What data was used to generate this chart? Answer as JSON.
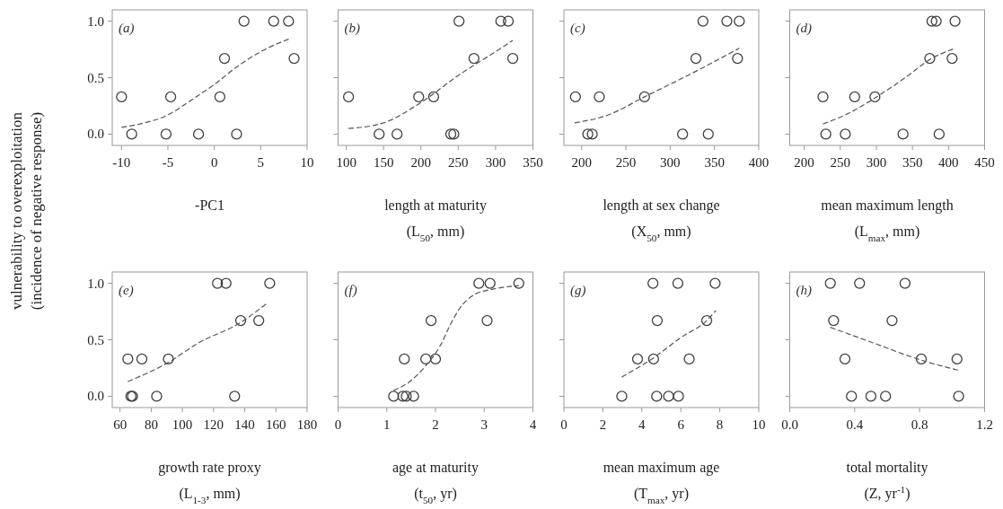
{
  "chart_data": [
    {
      "type": "scatter",
      "title": "(a)",
      "xlabel": "-PC1",
      "ylabel": "vulnerability to overexploitation\n(incidence of negative response)",
      "xlim": [
        -11,
        10
      ],
      "xticks": [
        -10,
        -5,
        0,
        5,
        10
      ],
      "ylim": [
        -0.1,
        1.1
      ],
      "yticks": [
        {
          "value": 0,
          "label": "0.0"
        },
        {
          "value": 0.5,
          "label": "0.5"
        },
        {
          "value": 1,
          "label": "1.0"
        }
      ],
      "series": [
        {
          "type": "scatter",
          "marker": "circle",
          "color": "#404040",
          "x": [
            -10,
            -8.9,
            -5.2,
            -4.7,
            -1.7,
            0.6,
            1.1,
            2.4,
            3.2,
            6.4,
            8.0,
            8.6
          ],
          "values": [
            0.33,
            0,
            0,
            0.33,
            0,
            0.33,
            0.67,
            0,
            1,
            1,
            1,
            0.67
          ]
        },
        {
          "type": "line",
          "line_style": "dashed",
          "color": "#555555",
          "x": [
            -10,
            -7.5,
            -5,
            -2.5,
            0,
            2.5,
            5,
            8.3
          ],
          "values": [
            0.06,
            0.1,
            0.17,
            0.3,
            0.44,
            0.6,
            0.73,
            0.85
          ]
        }
      ]
    },
    {
      "type": "scatter",
      "title": "(b)",
      "xlabel": "length at maturity\n(L$_{50}$, mm)",
      "xlim": [
        89,
        350
      ],
      "xticks": [
        100,
        150,
        200,
        250,
        300,
        350
      ],
      "ylim": [
        -0.1,
        1.1
      ],
      "yticks": [
        0,
        0.5,
        1
      ],
      "tick_labels": "x",
      "series": [
        {
          "type": "scatter",
          "marker": "circle",
          "color": "#404040",
          "x": [
            103,
            144,
            168,
            197,
            217,
            240,
            244,
            251,
            271,
            307,
            317,
            323
          ],
          "values": [
            0.33,
            0,
            0,
            0.33,
            0.33,
            0,
            0,
            1,
            0.67,
            1,
            1,
            0.67
          ]
        },
        {
          "type": "line",
          "line_style": "dashed",
          "color": "#555555",
          "x": [
            103,
            150,
            200,
            250,
            300,
            323
          ],
          "values": [
            0.05,
            0.1,
            0.28,
            0.52,
            0.73,
            0.83
          ]
        }
      ]
    },
    {
      "type": "scatter",
      "title": "(c)",
      "xlabel": "length at sex change\n(X$_{50}$, mm)",
      "xlim": [
        180,
        400
      ],
      "xticks": [
        200,
        250,
        300,
        350,
        400
      ],
      "ylim": [
        -0.1,
        1.1
      ],
      "yticks": [
        0,
        0.5,
        1
      ],
      "tick_labels": "x",
      "series": [
        {
          "type": "scatter",
          "marker": "circle",
          "color": "#404040",
          "x": [
            193,
            207,
            212,
            220,
            271,
            314,
            329,
            337,
            343,
            364,
            376,
            378
          ],
          "values": [
            0.33,
            0,
            0,
            0.33,
            0.33,
            0,
            0.67,
            1,
            0,
            1,
            0.67,
            1
          ]
        },
        {
          "type": "line",
          "line_style": "dashed",
          "color": "#555555",
          "x": [
            192,
            230,
            271,
            320,
            378
          ],
          "values": [
            0.1,
            0.17,
            0.33,
            0.52,
            0.76
          ]
        }
      ]
    },
    {
      "type": "scatter",
      "title": "(d)",
      "xlabel": "mean maximum length\n(L$_{max}$, mm)",
      "xlim": [
        180,
        450
      ],
      "xticks": [
        200,
        250,
        300,
        350,
        400,
        450
      ],
      "ylim": [
        -0.1,
        1.1
      ],
      "yticks": [
        0,
        0.5,
        1
      ],
      "tick_labels": "x",
      "series": [
        {
          "type": "scatter",
          "marker": "circle",
          "color": "#404040",
          "x": [
            226,
            230,
            257,
            270,
            298,
            337,
            374,
            377,
            383,
            387,
            405,
            409
          ],
          "values": [
            0.33,
            0,
            0,
            0.33,
            0.33,
            0,
            0.67,
            1,
            1,
            0,
            0.67,
            1
          ]
        },
        {
          "type": "line",
          "line_style": "dashed",
          "color": "#555555",
          "x": [
            226,
            260,
            298,
            340,
            374,
            409
          ],
          "values": [
            0.09,
            0.18,
            0.32,
            0.5,
            0.66,
            0.76
          ]
        }
      ]
    },
    {
      "type": "scatter",
      "title": "(e)",
      "xlabel": "growth rate proxy\n(L$_{1-3}$, mm)",
      "xlim": [
        55,
        180
      ],
      "xticks": [
        60,
        80,
        100,
        120,
        140,
        160,
        180
      ],
      "ylim": [
        -0.1,
        1.1
      ],
      "yticks": [
        {
          "value": 0,
          "label": "0.0"
        },
        {
          "value": 0.5,
          "label": "0.5"
        },
        {
          "value": 1,
          "label": "1.0"
        }
      ],
      "series": [
        {
          "type": "scatter",
          "marker": "circle",
          "color": "#404040",
          "x": [
            65,
            67,
            68,
            74,
            83.5,
            91,
            122.5,
            128,
            133.5,
            137.4,
            149,
            156
          ],
          "values": [
            0.33,
            0,
            0,
            0.33,
            0,
            0.33,
            1,
            1,
            0,
            0.67,
            0.67,
            1
          ]
        },
        {
          "type": "line",
          "line_style": "dashed",
          "color": "#555555",
          "x": [
            65,
            91,
            110,
            137,
            154
          ],
          "values": [
            0.13,
            0.3,
            0.47,
            0.65,
            0.82
          ]
        }
      ]
    },
    {
      "type": "scatter",
      "title": "(f)",
      "xlabel": "age at maturity\n(t$_{50}$, yr)",
      "xlim": [
        0,
        4
      ],
      "xticks": [
        0,
        1,
        2,
        3,
        4
      ],
      "ylim": [
        -0.1,
        1.1
      ],
      "yticks": [
        0,
        0.5,
        1
      ],
      "tick_labels": "x",
      "series": [
        {
          "type": "scatter",
          "marker": "circle",
          "color": "#404040",
          "x": [
            1.14,
            1.33,
            1.4,
            1.55,
            1.36,
            1.8,
            2.0,
            1.91,
            2.89,
            3.12,
            3.06,
            3.71
          ],
          "values": [
            0,
            0,
            0,
            0,
            0.33,
            0.33,
            0.33,
            0.67,
            1,
            1,
            0.67,
            1
          ]
        },
        {
          "type": "line",
          "line_style": "dashed",
          "color": "#555555",
          "x": [
            1.14,
            1.5,
            1.8,
            2.0,
            2.1,
            2.3,
            2.5,
            2.8,
            3.2,
            3.71
          ],
          "values": [
            0.05,
            0.14,
            0.27,
            0.38,
            0.45,
            0.63,
            0.78,
            0.9,
            0.95,
            0.98
          ]
        }
      ]
    },
    {
      "type": "scatter",
      "title": "(g)",
      "xlabel": "mean maximum age\n(T$_{max}$, yr)",
      "xlim": [
        0,
        10
      ],
      "xticks": [
        0,
        2,
        4,
        6,
        8,
        10
      ],
      "ylim": [
        -0.1,
        1.1
      ],
      "yticks": [
        0,
        0.5,
        1
      ],
      "tick_labels": "x",
      "series": [
        {
          "type": "scatter",
          "marker": "circle",
          "color": "#404040",
          "x": [
            2.97,
            3.78,
            4.57,
            4.6,
            4.76,
            4.79,
            5.37,
            5.85,
            5.88,
            6.43,
            7.33,
            7.76
          ],
          "values": [
            0,
            0.33,
            1,
            0.33,
            0,
            0.67,
            0,
            1,
            0,
            0.33,
            0.67,
            1
          ]
        },
        {
          "type": "line",
          "line_style": "dashed",
          "color": "#555555",
          "x": [
            2.97,
            4.6,
            6.0,
            7.33,
            7.8
          ],
          "values": [
            0.17,
            0.34,
            0.52,
            0.67,
            0.76
          ]
        }
      ]
    },
    {
      "type": "scatter",
      "title": "(h)",
      "xlabel": "total mortality\n(Z, yr$^{-1}$)",
      "xlim": [
        0,
        1.2
      ],
      "xticks": [
        {
          "value": 0,
          "label": "0.0"
        },
        0.4,
        0.8,
        1.2
      ],
      "ylim": [
        -0.1,
        1.1
      ],
      "yticks": [
        0,
        0.5,
        1
      ],
      "tick_labels": "x",
      "series": [
        {
          "type": "scatter",
          "marker": "circle",
          "color": "#404040",
          "x": [
            0.25,
            0.27,
            0.34,
            0.38,
            0.43,
            0.5,
            0.59,
            0.63,
            0.71,
            0.81,
            1.03,
            1.04
          ],
          "values": [
            1,
            0.67,
            0.33,
            0,
            1,
            0,
            0,
            0.67,
            1,
            0.33,
            0.33,
            0
          ]
        },
        {
          "type": "line",
          "line_style": "dashed",
          "color": "#555555",
          "x": [
            0.25,
            0.5,
            0.81,
            1.04
          ],
          "values": [
            0.61,
            0.48,
            0.32,
            0.23
          ]
        }
      ]
    }
  ]
}
